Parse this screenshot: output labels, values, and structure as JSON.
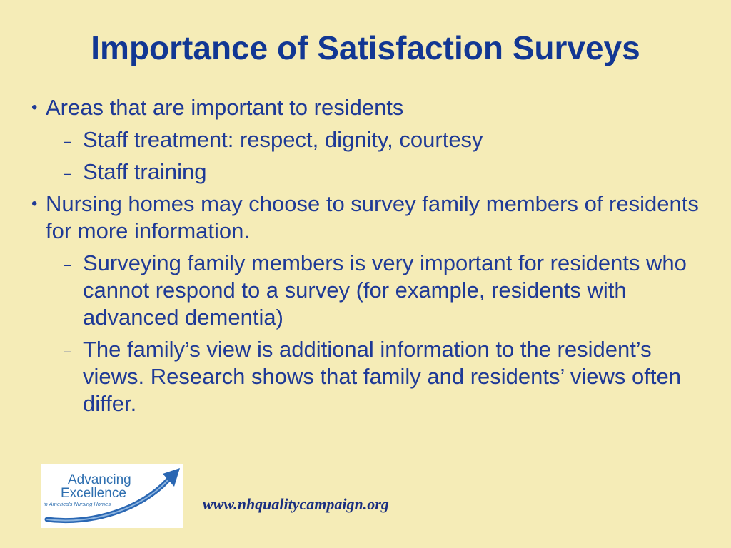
{
  "slide": {
    "title": "Importance of Satisfaction Surveys",
    "bullet_marker": "•",
    "sub_marker": "–",
    "bullets": [
      {
        "text": "Areas that are important to residents",
        "subs": [
          "Staff treatment: respect, dignity, courtesy",
          "Staff training"
        ]
      },
      {
        "text": "Nursing homes may choose to survey family members of residents for more information.",
        "subs": [
          "Surveying family members is very important for residents who cannot respond to a survey (for example, residents with advanced dementia)",
          "The family’s view is additional information to the resident’s views. Research shows that family and residents’ views often differ."
        ]
      }
    ]
  },
  "footer": {
    "logo_line1": "Advancing",
    "logo_line2": "Excellence",
    "logo_tagline": "in America's Nursing Homes",
    "url": "www.nhqualitycampaign.org"
  },
  "colors": {
    "background": "#f5ecb7",
    "text": "#1f3a96",
    "title": "#123793",
    "logo_blue": "#2e6fb0",
    "logo_swoosh": "#2a67b3"
  }
}
